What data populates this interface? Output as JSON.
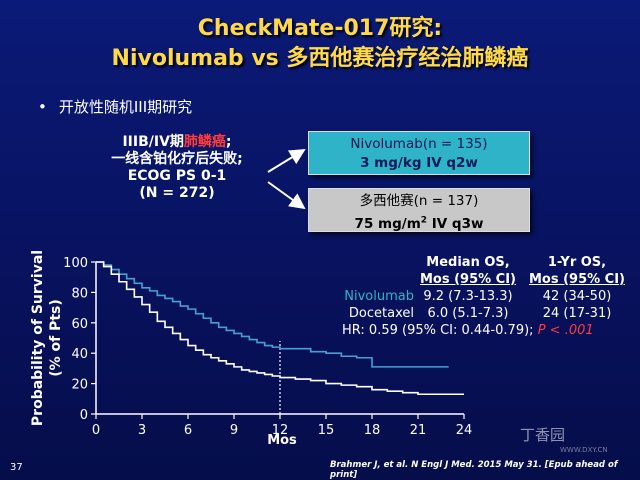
{
  "header": {
    "title_line1": "CheckMate-017研究:",
    "title_line2": "Nivolumab vs 多西他赛治疗经治肺鳞癌"
  },
  "bullet": {
    "symbol": "•",
    "text": "开放性随机III期研究"
  },
  "population": {
    "line1_pre": "IIIB/IV期",
    "line1_red": "肺鳞癌",
    "line1_post": ";",
    "line2": "一线含铂化疗后失败;",
    "line3": "ECOG PS 0-1",
    "line4": "(N = 272)"
  },
  "arms": [
    {
      "name": "Nivolumab",
      "n": "(n = 135)",
      "dose": "3 mg/kg IV q2w",
      "color": "#2fb3c9"
    },
    {
      "name": "多西他赛",
      "n": "(n = 137)",
      "dose_pre": "75 mg/m",
      "dose_sup": "2",
      "dose_post": " IV q3w",
      "color": "#c8c8c8"
    }
  ],
  "table": {
    "col1_header_line1": "Median OS,",
    "col1_header_line2": "Mos (95% CI)",
    "col2_header_line1": "1-Yr OS,",
    "col2_header_line2": "Mos (95% CI)",
    "rows": [
      {
        "label": "Nivolumab",
        "label_color": "#2fb3c9",
        "median": "9.2 (7.3-13.3)",
        "oneyr": "42 (34-50)"
      },
      {
        "label": "Docetaxel",
        "label_color": "#ffffff",
        "median": "6.0 (5.1-7.3)",
        "oneyr": "24 (17-31)"
      }
    ],
    "hr_text": "HR: 0.59 (95% CI: 0.44-0.79);",
    "p_text": "P < .001",
    "p_color": "#ff3b3b"
  },
  "chart_data": {
    "type": "line",
    "xlabel": "Mos",
    "ylabel_line1": "Probability of Survival",
    "ylabel_line2": "(% of Pts)",
    "xlim": [
      0,
      24
    ],
    "ylim": [
      0,
      100
    ],
    "xticks": [
      "0",
      "3",
      "6",
      "9",
      "12",
      "15",
      "18",
      "21",
      "24"
    ],
    "yticks": [
      "0",
      "20",
      "40",
      "60",
      "80",
      "100"
    ],
    "reference_x": 12,
    "series": [
      {
        "name": "Nivolumab",
        "color": "#4a9fd0",
        "x": [
          0,
          0.5,
          1,
          1.5,
          2,
          2.5,
          3,
          3.5,
          4,
          4.5,
          5,
          5.5,
          6,
          6.5,
          7,
          7.5,
          8,
          8.5,
          9,
          9.5,
          10,
          10.5,
          11,
          11.5,
          12,
          13,
          14,
          15,
          16,
          17,
          18,
          19,
          20,
          21,
          22,
          23
        ],
        "y": [
          100,
          98,
          95,
          92,
          89,
          86,
          83,
          81,
          78,
          76,
          74,
          71,
          69,
          66,
          63,
          60,
          57,
          55,
          53,
          51,
          49,
          47,
          45,
          44,
          43,
          43,
          41,
          40,
          38,
          37,
          31,
          31,
          31,
          31,
          31,
          31
        ]
      },
      {
        "name": "Docetaxel",
        "color": "#ffffff",
        "x": [
          0,
          0.5,
          1,
          1.5,
          2,
          2.5,
          3,
          3.5,
          4,
          4.5,
          5,
          5.5,
          6,
          6.5,
          7,
          7.5,
          8,
          8.5,
          9,
          9.5,
          10,
          10.5,
          11,
          11.5,
          12,
          13,
          14,
          15,
          16,
          17,
          18,
          19,
          20,
          21,
          22,
          23,
          24
        ],
        "y": [
          100,
          97,
          92,
          87,
          82,
          77,
          72,
          67,
          61,
          57,
          53,
          49,
          45,
          42,
          39,
          37,
          35,
          33,
          31,
          29,
          28,
          27,
          26,
          25,
          24,
          23,
          22,
          20,
          19,
          18,
          16,
          15,
          14,
          13,
          13,
          13,
          13
        ]
      }
    ]
  },
  "citation": "Brahmer J, et al. N Engl J Med. 2015 May 31. [Epub ahead of print]",
  "page_number": "37",
  "watermark": "丁香园",
  "watermark_url": "WWW.DXY.CN"
}
